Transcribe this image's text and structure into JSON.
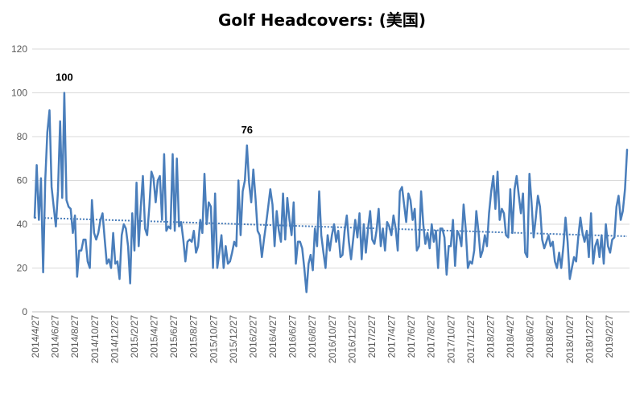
{
  "chart_data": {
    "type": "line",
    "title": "Golf Headcovers: (美国)",
    "xlabel": "",
    "ylabel": "",
    "ylim": [
      0,
      120
    ],
    "yticks": [
      0,
      20,
      40,
      60,
      80,
      100,
      120
    ],
    "grid": true,
    "legend": "none",
    "line_color": "#4a7ebb",
    "trend_color": "#4a7ebb",
    "x_tick_labels": [
      "2014/4/27",
      "2014/6/27",
      "2014/8/27",
      "2014/10/27",
      "2014/12/27",
      "2015/2/27",
      "2015/4/27",
      "2015/6/27",
      "2015/8/27",
      "2015/10/27",
      "2015/12/27",
      "2016/2/27",
      "2016/4/27",
      "2016/6/27",
      "2016/8/27",
      "2016/10/27",
      "2016/12/27",
      "2017/2/27",
      "2017/4/27",
      "2017/6/27",
      "2017/8/27",
      "2017/10/27",
      "2017/12/27",
      "2018/2/27",
      "2018/4/27",
      "2018/6/27",
      "2018/8/27",
      "2018/10/27",
      "2018/12/27",
      "2019/2/27"
    ],
    "series": [
      {
        "values": [
          43,
          67,
          42,
          61,
          18,
          60,
          82,
          92,
          57,
          48,
          39,
          55,
          87,
          52,
          100,
          51,
          48,
          47,
          36,
          44,
          16,
          28,
          28,
          33,
          33,
          23,
          20,
          51,
          36,
          33,
          36,
          42,
          45,
          33,
          22,
          24,
          20,
          36,
          22,
          23,
          15,
          35,
          40,
          38,
          30,
          13,
          45,
          28,
          59,
          30,
          48,
          62,
          38,
          35,
          48,
          64,
          61,
          50,
          60,
          62,
          42,
          72,
          37,
          39,
          38,
          72,
          37,
          70,
          39,
          41,
          33,
          23,
          32,
          33,
          32,
          37,
          27,
          30,
          42,
          36,
          63,
          40,
          50,
          48,
          20,
          54,
          20,
          27,
          35,
          20,
          30,
          22,
          23,
          27,
          32,
          30,
          60,
          35,
          55,
          60,
          76,
          59,
          50,
          65,
          52,
          37,
          35,
          25,
          33,
          40,
          48,
          56,
          49,
          30,
          46,
          37,
          32,
          54,
          33,
          52,
          42,
          35,
          50,
          22,
          32,
          32,
          29,
          20,
          9,
          22,
          26,
          19,
          38,
          30,
          55,
          35,
          27,
          20,
          35,
          28,
          35,
          40,
          32,
          37,
          25,
          26,
          37,
          44,
          32,
          24,
          33,
          42,
          34,
          45,
          24,
          40,
          27,
          38,
          46,
          33,
          31,
          37,
          47,
          30,
          38,
          28,
          41,
          39,
          35,
          44,
          38,
          28,
          55,
          57,
          49,
          41,
          54,
          51,
          42,
          47,
          28,
          30,
          55,
          40,
          31,
          36,
          29,
          40,
          32,
          37,
          20,
          38,
          38,
          34,
          17,
          30,
          30,
          42,
          21,
          37,
          35,
          30,
          49,
          38,
          20,
          23,
          22,
          28,
          46,
          37,
          25,
          28,
          35,
          30,
          45,
          55,
          62,
          47,
          64,
          42,
          47,
          45,
          35,
          34,
          56,
          36,
          56,
          62,
          53,
          45,
          54,
          27,
          25,
          63,
          50,
          34,
          43,
          53,
          48,
          33,
          29,
          32,
          35,
          30,
          32,
          23,
          20,
          27,
          20,
          30,
          43,
          32,
          15,
          20,
          25,
          23,
          34,
          43,
          36,
          32,
          37,
          25,
          45,
          22,
          30,
          33,
          25,
          35,
          22,
          40,
          30,
          27,
          33,
          34,
          48,
          53,
          42,
          46,
          56,
          74
        ],
        "trend": [
          43,
          34.5
        ]
      }
    ],
    "annotations": [
      {
        "text": "100",
        "index": 14,
        "value": 100
      },
      {
        "text": "76",
        "index": 100,
        "value": 76
      }
    ]
  }
}
